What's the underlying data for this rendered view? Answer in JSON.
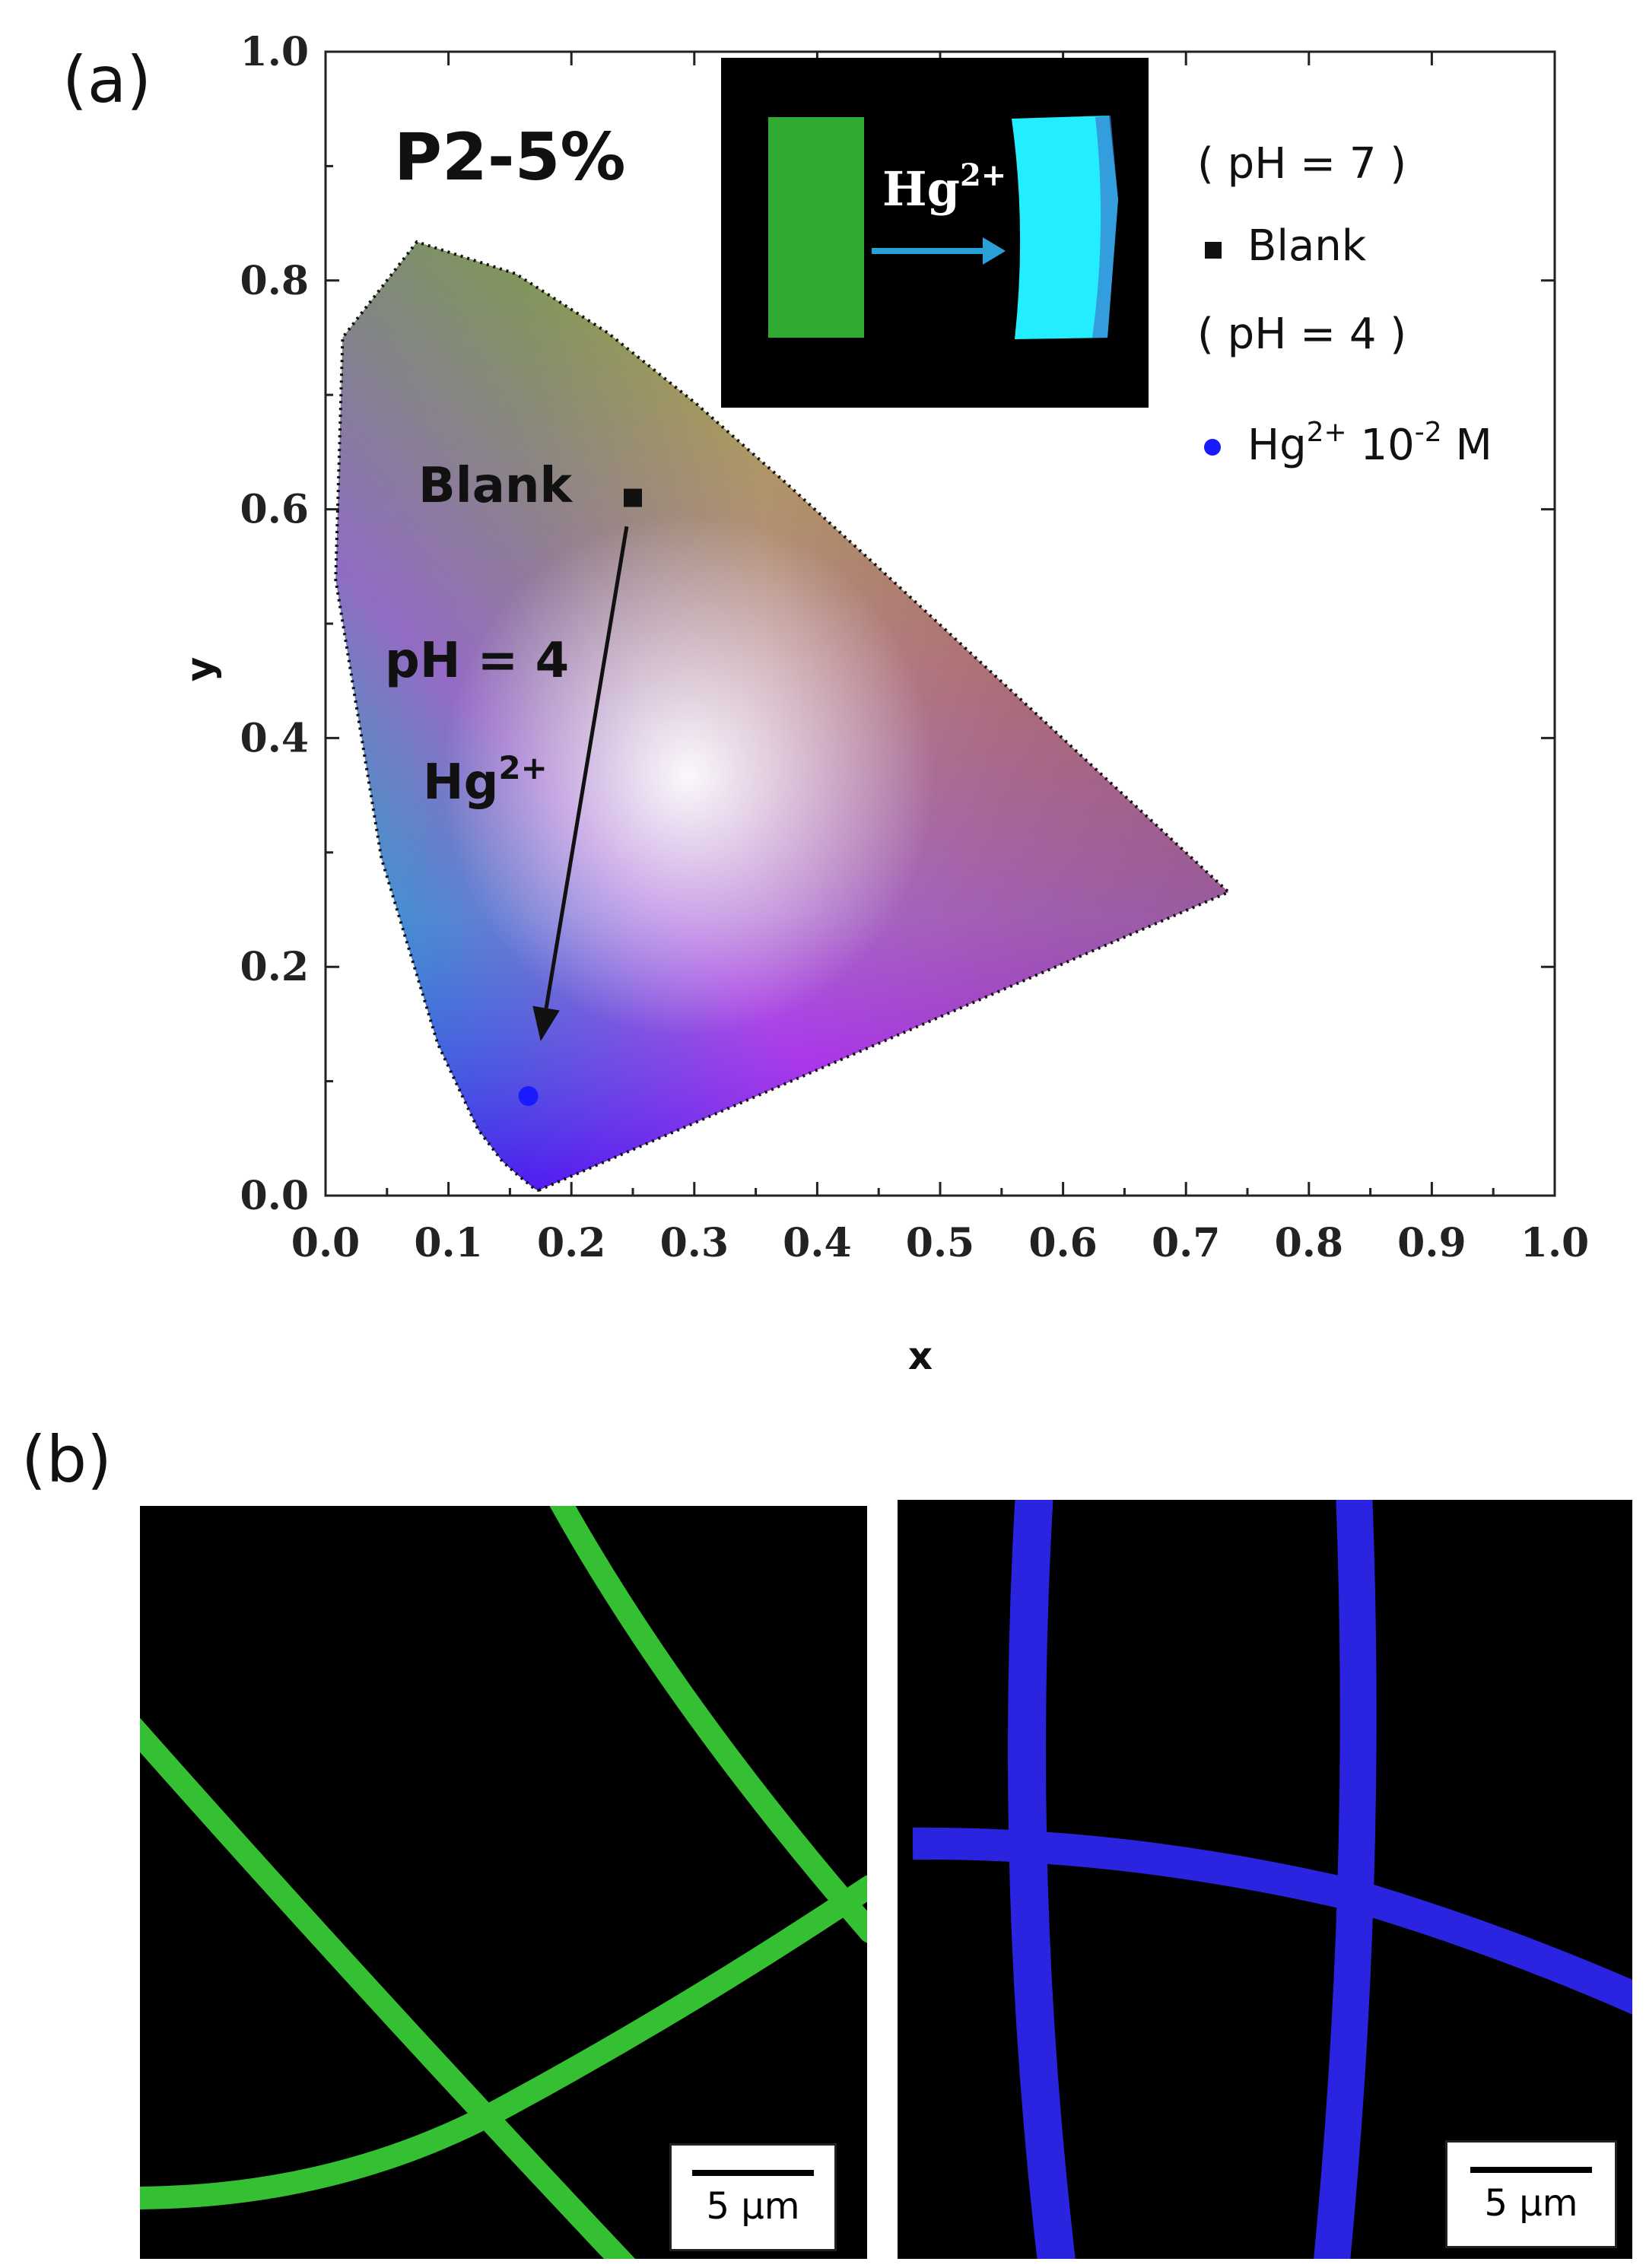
{
  "panels": {
    "a_label": "(a)",
    "b_label": "(b)"
  },
  "chart_data": {
    "type": "scatter",
    "title": "P2-5%",
    "xlabel": "x",
    "ylabel": "y",
    "xlim": [
      0.0,
      1.0
    ],
    "ylim": [
      0.0,
      1.0
    ],
    "xticks": [
      "0.0",
      "0.1",
      "0.2",
      "0.3",
      "0.4",
      "0.5",
      "0.6",
      "0.7",
      "0.8",
      "0.9",
      "1.0"
    ],
    "yticks": [
      "0.0",
      "0.2",
      "0.4",
      "0.6",
      "0.8",
      "1.0"
    ],
    "grid": false,
    "background": "CIE 1931 chromaticity diagram",
    "series": [
      {
        "name": "Blank",
        "marker": "square",
        "color": "#111111",
        "points": [
          {
            "x": 0.25,
            "y": 0.61
          }
        ]
      },
      {
        "name": "Hg²⁺ 10⁻² M",
        "marker": "circle",
        "color": "#1a1aff",
        "points": [
          {
            "x": 0.165,
            "y": 0.087
          }
        ]
      }
    ],
    "legend": {
      "placement": "top-right",
      "entries": [
        {
          "type": "text",
          "text": "( pH = 7 )"
        },
        {
          "type": "series",
          "marker": "square",
          "color": "#111111",
          "base": "Blank"
        },
        {
          "type": "text",
          "text": "( pH = 4 )"
        },
        {
          "type": "series",
          "marker": "circle",
          "color": "#1a1aff",
          "base": "Hg",
          "sup1": "2+",
          "mid": " 10",
          "sup2": "-2",
          "tail": " M"
        }
      ]
    },
    "annotations": {
      "blank_label": "Blank",
      "ph_label": "pH = 4",
      "hg_label": "Hg",
      "hg_sup": "2+",
      "arrow": {
        "from": {
          "x": 0.245,
          "y": 0.585
        },
        "to": {
          "x": 0.175,
          "y": 0.135
        }
      }
    },
    "inset": {
      "label": "Hg",
      "label_sup": "2+",
      "left_color": "#3db83a",
      "right_color": "#22eeff",
      "arrow_color": "#2a9fd8"
    }
  },
  "micrographs": [
    {
      "name": "green",
      "color": "#35c033",
      "scale_label": "5 μm"
    },
    {
      "name": "blue",
      "color": "#2a24e0",
      "scale_label": "5 μm"
    }
  ]
}
